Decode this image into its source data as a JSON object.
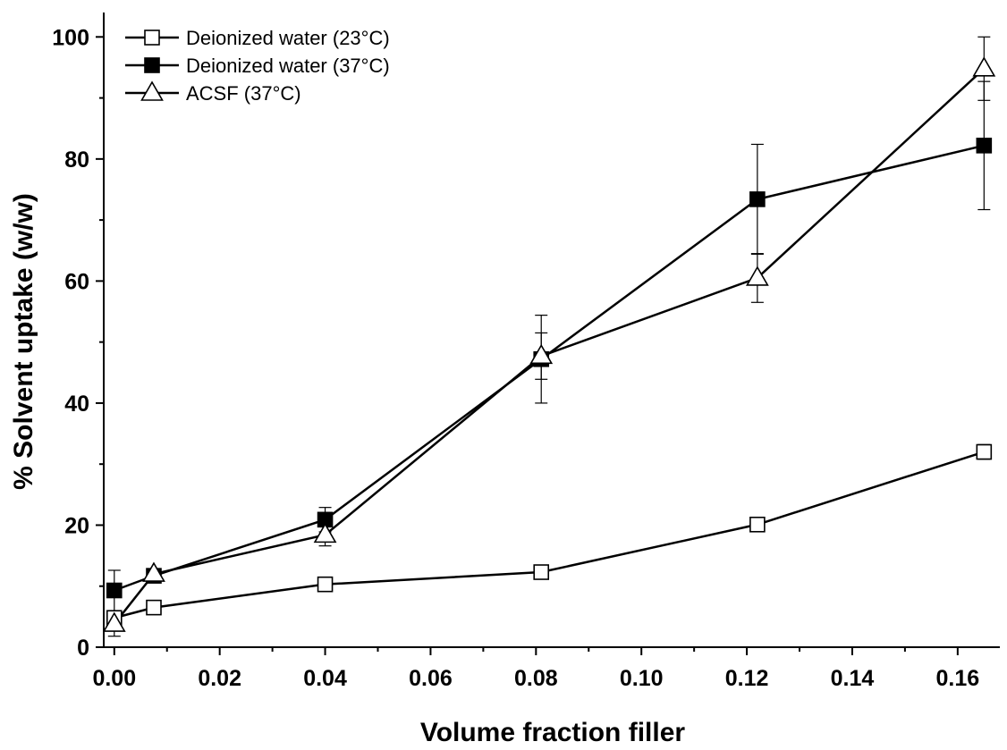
{
  "chart_data": {
    "type": "line",
    "title": "",
    "xlabel": "Volume fraction filler",
    "ylabel": "% Solvent uptake (w/w)",
    "xlim": [
      -0.002,
      0.168
    ],
    "ylim": [
      0,
      104
    ],
    "x_ticks": [
      0.0,
      0.02,
      0.04,
      0.06,
      0.08,
      0.1,
      0.12,
      0.14,
      0.16
    ],
    "x_tick_labels": [
      "0.00",
      "0.02",
      "0.04",
      "0.06",
      "0.08",
      "0.10",
      "0.12",
      "0.14",
      "0.16"
    ],
    "y_ticks": [
      0,
      20,
      40,
      60,
      80,
      100
    ],
    "y_tick_labels": [
      "0",
      "20",
      "40",
      "60",
      "80",
      "100"
    ],
    "grid": false,
    "legend_position": "top-left",
    "series": [
      {
        "name": "Deionized water (23°C)",
        "marker": "square-open",
        "x": [
          0.0,
          0.0075,
          0.04,
          0.081,
          0.122,
          0.165
        ],
        "y": [
          4.8,
          6.5,
          10.3,
          12.3,
          20.1,
          32.0
        ],
        "err": [
          0.8,
          0.9,
          0.7,
          1.0,
          0.8,
          1.2
        ]
      },
      {
        "name": "Deionized water (37°C)",
        "marker": "square-filled",
        "x": [
          0.0,
          0.0075,
          0.04,
          0.081,
          0.122,
          0.165
        ],
        "y": [
          9.3,
          11.7,
          20.9,
          47.2,
          73.4,
          82.2
        ],
        "err": [
          3.3,
          0.8,
          2.0,
          7.2,
          9.0,
          10.5
        ]
      },
      {
        "name": "ACSF (37°C)",
        "marker": "triangle-open",
        "x": [
          0.0,
          0.0075,
          0.04,
          0.081,
          0.122,
          0.165
        ],
        "y": [
          3.8,
          12.0,
          18.4,
          47.7,
          60.5,
          94.8
        ],
        "err": [
          2.0,
          0.8,
          1.8,
          3.8,
          4.0,
          5.2
        ]
      }
    ]
  }
}
